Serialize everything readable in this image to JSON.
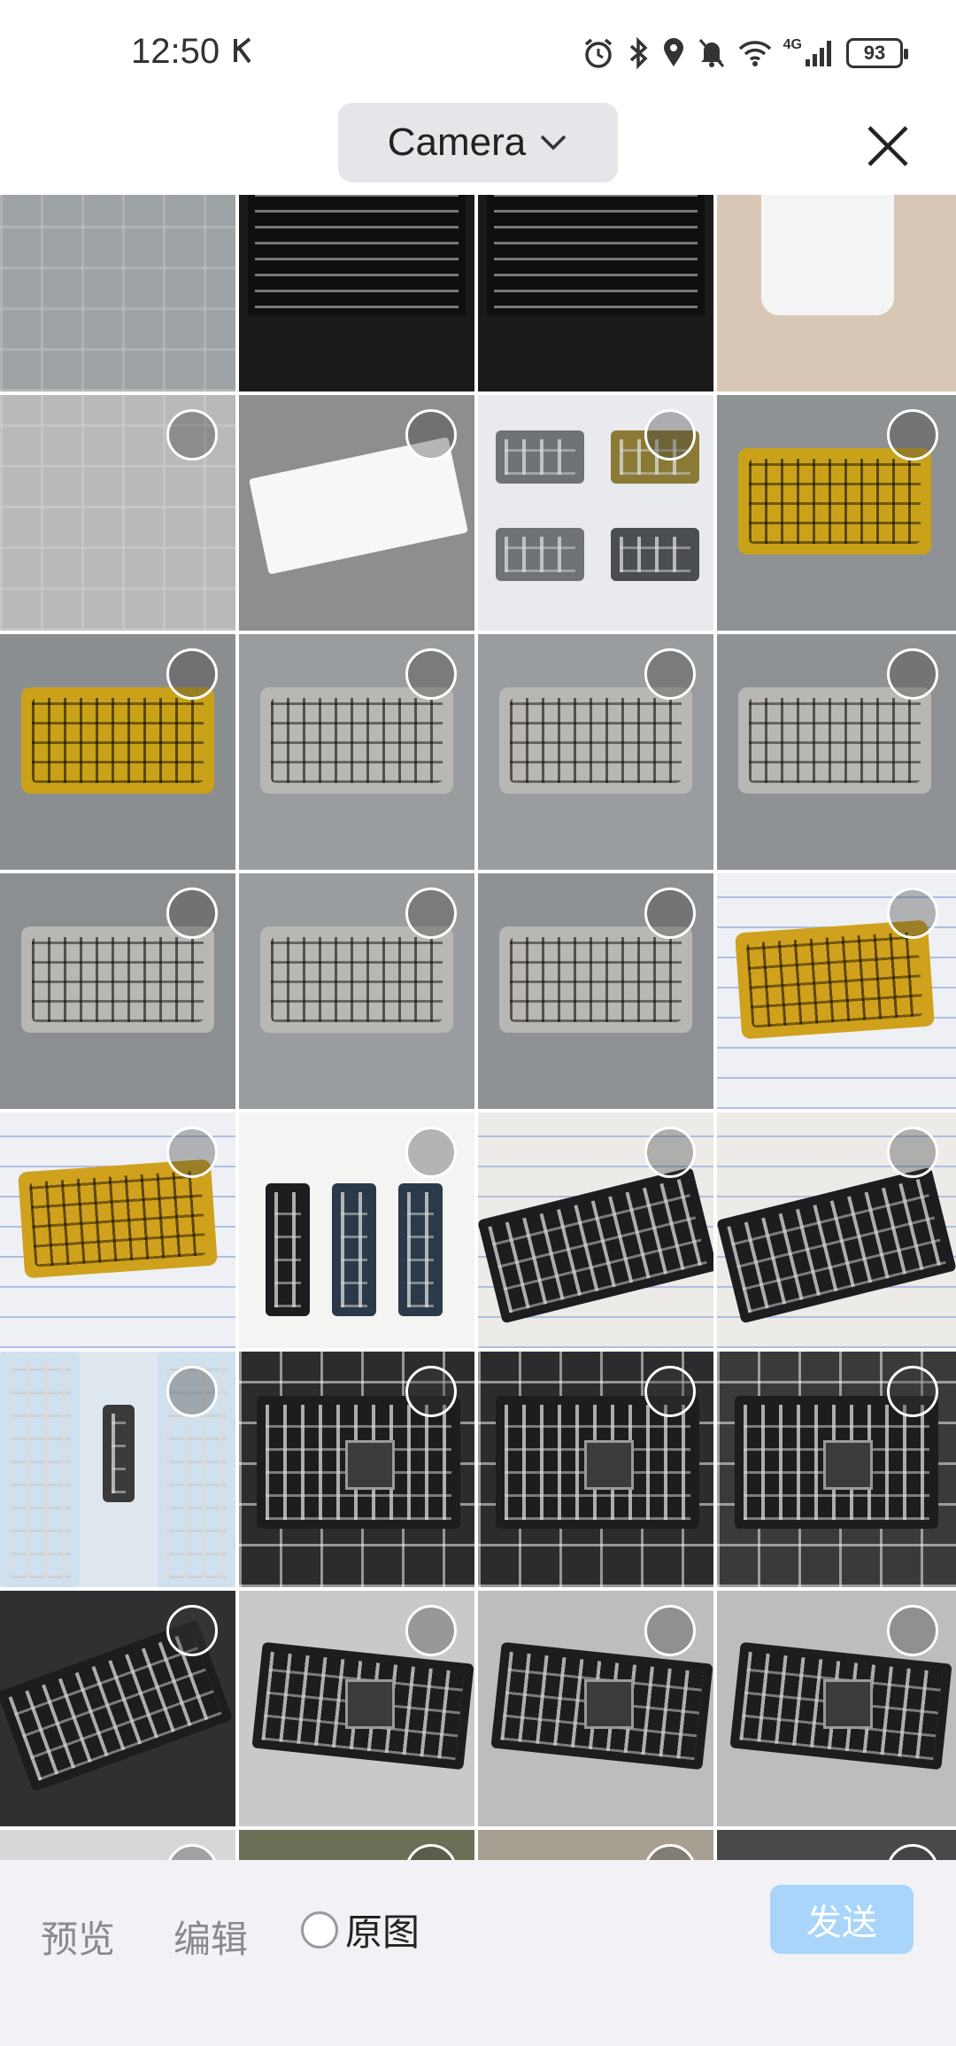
{
  "status_bar": {
    "time": "12:50",
    "network": "4G",
    "battery": "93"
  },
  "header": {
    "album": "Camera",
    "close_icon": "close-icon"
  },
  "grid": {
    "tiles": [
      {
        "kind": "floor",
        "bg": "#9ea3a6",
        "selectable": false
      },
      {
        "kind": "screen",
        "bg": "#1a1a1a",
        "selectable": false
      },
      {
        "kind": "screen",
        "bg": "#1a1a1a",
        "selectable": false
      },
      {
        "kind": "cup",
        "bg": "#d9c7b6",
        "selectable": false
      },
      {
        "kind": "floor",
        "bg": "#b7b9bb",
        "selectable": true
      },
      {
        "kind": "paper",
        "bg": "#8c8e90",
        "selectable": true
      },
      {
        "kind": "boards",
        "bg": "#e9eaee",
        "selectable": true
      },
      {
        "kind": "pcb_gold",
        "bg": "#8f9294",
        "selectable": true
      },
      {
        "kind": "pcb_gold",
        "bg": "#8b8e91",
        "selectable": true
      },
      {
        "kind": "pcb_silver",
        "bg": "#9a9da0",
        "selectable": true
      },
      {
        "kind": "pcb_silver",
        "bg": "#9a9da0",
        "selectable": true
      },
      {
        "kind": "pcb_silver",
        "bg": "#8f9295",
        "selectable": true
      },
      {
        "kind": "pcb_silver",
        "bg": "#8c8f92",
        "selectable": true
      },
      {
        "kind": "pcb_silver",
        "bg": "#9a9da0",
        "selectable": true
      },
      {
        "kind": "pcb_silver",
        "bg": "#8f9295",
        "selectable": true
      },
      {
        "kind": "pcb_gold_paper",
        "bg": "#eef0f4",
        "selectable": true
      },
      {
        "kind": "pcb_gold_paper",
        "bg": "#eef0f4",
        "selectable": true
      },
      {
        "kind": "usb_boards",
        "bg": "#f4f4f2",
        "selectable": true
      },
      {
        "kind": "usb_board",
        "bg": "#ecebe8",
        "selectable": true
      },
      {
        "kind": "usb_board",
        "bg": "#ecebe8",
        "selectable": true
      },
      {
        "kind": "blue_boards",
        "bg": "#dfe7ee",
        "selectable": true
      },
      {
        "kind": "board_mat",
        "bg": "#2c2c2e",
        "selectable": true
      },
      {
        "kind": "board_mat",
        "bg": "#2c2c2e",
        "selectable": true
      },
      {
        "kind": "board_mat",
        "bg": "#3a3a3a",
        "selectable": true
      },
      {
        "kind": "board_dark",
        "bg": "#2f3032",
        "selectable": true
      },
      {
        "kind": "board_light",
        "bg": "#c9c9cb",
        "selectable": true
      },
      {
        "kind": "board_light",
        "bg": "#bdbdc0",
        "selectable": true
      },
      {
        "kind": "board_light",
        "bg": "#bdbdc0",
        "selectable": true
      },
      {
        "kind": "partial",
        "bg": "#d6d7d9",
        "selectable": true
      },
      {
        "kind": "partial",
        "bg": "#6b6f55",
        "selectable": true
      },
      {
        "kind": "partial",
        "bg": "#a79f92",
        "selectable": true
      },
      {
        "kind": "partial",
        "bg": "#47494b",
        "selectable": true
      }
    ]
  },
  "bottom_bar": {
    "preview": "预览",
    "edit": "编辑",
    "original": "原图",
    "send": "发送"
  }
}
